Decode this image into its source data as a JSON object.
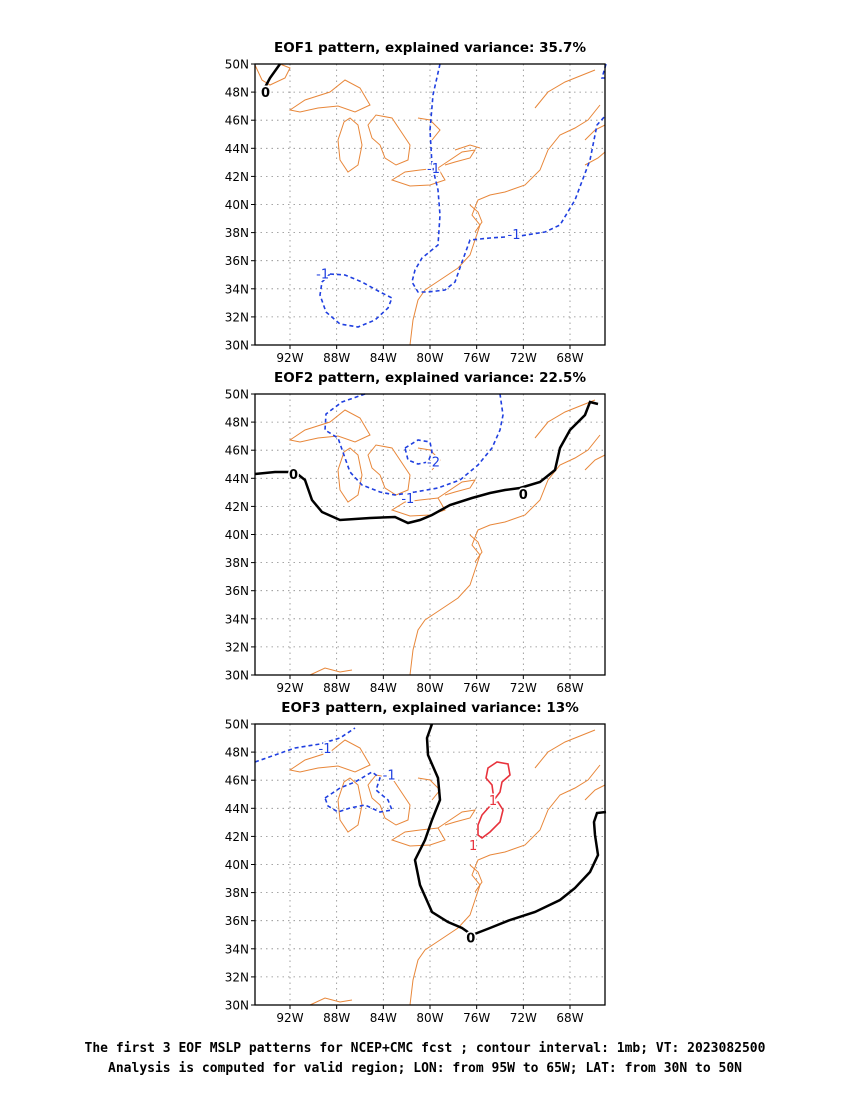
{
  "panels": [
    {
      "title": "EOF1 pattern, explained variance: 35.7%",
      "lon_ticks": [
        "92W",
        "88W",
        "84W",
        "80W",
        "76W",
        "72W",
        "68W"
      ],
      "lat_ticks": [
        "50N",
        "48N",
        "46N",
        "44N",
        "42N",
        "40N",
        "38N",
        "36N",
        "34N",
        "32N",
        "30N"
      ],
      "contour_labels": [
        {
          "text": "0",
          "lon": -94.1,
          "lat": 48.0,
          "color": "#000000"
        },
        {
          "text": "-1",
          "lon": -79.7,
          "lat": 42.6,
          "color": "#1f3fe0"
        },
        {
          "text": "-1",
          "lon": -72.8,
          "lat": 37.9,
          "color": "#1f3fe0"
        },
        {
          "text": "-1",
          "lon": -89.2,
          "lat": 35.1,
          "color": "#1f3fe0"
        }
      ]
    },
    {
      "title": "EOF2 pattern, explained variance: 22.5%",
      "lon_ticks": [
        "92W",
        "88W",
        "84W",
        "80W",
        "76W",
        "72W",
        "68W"
      ],
      "lat_ticks": [
        "50N",
        "48N",
        "46N",
        "44N",
        "42N",
        "40N",
        "38N",
        "36N",
        "34N",
        "32N",
        "30N"
      ],
      "contour_labels": [
        {
          "text": "0",
          "lon": -91.7,
          "lat": 44.3,
          "color": "#000000"
        },
        {
          "text": "0",
          "lon": -72.0,
          "lat": 42.9,
          "color": "#000000"
        },
        {
          "text": "-2",
          "lon": -79.7,
          "lat": 45.2,
          "color": "#1f3fe0"
        },
        {
          "text": "-1",
          "lon": -81.9,
          "lat": 42.6,
          "color": "#1f3fe0"
        }
      ]
    },
    {
      "title": "EOF3 pattern, explained variance: 13%",
      "lon_ticks": [
        "92W",
        "88W",
        "84W",
        "80W",
        "76W",
        "72W",
        "68W"
      ],
      "lat_ticks": [
        "50N",
        "48N",
        "46N",
        "44N",
        "42N",
        "40N",
        "38N",
        "36N",
        "34N",
        "32N",
        "30N"
      ],
      "contour_labels": [
        {
          "text": "-1",
          "lon": -89.0,
          "lat": 48.3,
          "color": "#1f3fe0"
        },
        {
          "text": "-1",
          "lon": -83.5,
          "lat": 46.4,
          "color": "#1f3fe0"
        },
        {
          "text": "1",
          "lon": -74.6,
          "lat": 44.6,
          "color": "#e8323c"
        },
        {
          "text": "1",
          "lon": -76.3,
          "lat": 41.4,
          "color": "#e8323c"
        },
        {
          "text": "0",
          "lon": -76.5,
          "lat": 34.8,
          "color": "#000000"
        }
      ]
    }
  ],
  "caption": {
    "line1": "The first 3 EOF MSLP patterns for NCEP+CMC fcst ; contour interval: 1mb; VT: 2023082500",
    "line2": "Analysis is computed for valid region; LON: from 95W to 65W; LAT: from 30N to 50N"
  },
  "colors": {
    "coast": "#e8873a",
    "negative": "#1f3fe0",
    "positive": "#e8323c",
    "zero": "#000000",
    "grid": "#888888"
  }
}
